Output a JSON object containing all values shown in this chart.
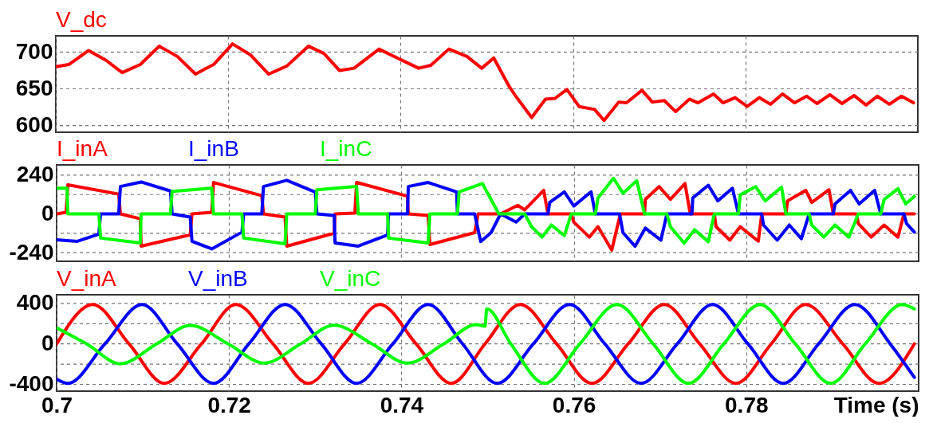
{
  "chart_data": [
    {
      "type": "line",
      "xlim": [
        0.7,
        0.8
      ],
      "xticks": [
        0.7,
        0.72,
        0.74,
        0.76,
        0.78
      ],
      "ylim": [
        591,
        722
      ],
      "yticks": [
        600,
        650,
        700
      ],
      "grid": true,
      "tick_labels": "y",
      "x": [
        0.7,
        0.7015,
        0.7038,
        0.7058,
        0.7077,
        0.7098,
        0.712,
        0.7141,
        0.7162,
        0.7183,
        0.7205,
        0.7226,
        0.7247,
        0.7268,
        0.7293,
        0.7311,
        0.7329,
        0.7346,
        0.7375,
        0.7396,
        0.7421,
        0.7435,
        0.7456,
        0.7477,
        0.7494,
        0.7508,
        0.7526,
        0.7533,
        0.7552,
        0.7568,
        0.7579,
        0.7593,
        0.7607,
        0.7625,
        0.7636,
        0.7653,
        0.7662,
        0.768,
        0.7692,
        0.7706,
        0.7719,
        0.7735,
        0.7745,
        0.7763,
        0.7774,
        0.7788,
        0.7802,
        0.7816,
        0.7829,
        0.7843,
        0.7857,
        0.7871,
        0.7883,
        0.7898,
        0.7912,
        0.7926,
        0.794,
        0.7953,
        0.7967,
        0.7981,
        0.7995
      ],
      "series": [
        {
          "name": "V_dc",
          "color": "#ff0000",
          "values": [
            680,
            683,
            702,
            689,
            672,
            683,
            708,
            694,
            670,
            683,
            711,
            696,
            670,
            681,
            708,
            698,
            675,
            678,
            704,
            692,
            678,
            682,
            704,
            694,
            678,
            692,
            653,
            641,
            611,
            636,
            637,
            649,
            626,
            622,
            607,
            632,
            631,
            648,
            632,
            634,
            619,
            636,
            631,
            643,
            631,
            638,
            626,
            638,
            629,
            643,
            631,
            640,
            630,
            642,
            630,
            641,
            628,
            640,
            629,
            640,
            631
          ]
        }
      ]
    },
    {
      "type": "line",
      "xlim": [
        0.7,
        0.8
      ],
      "xticks": [
        0.7,
        0.72,
        0.74,
        0.76,
        0.78
      ],
      "ylim": [
        -294,
        304
      ],
      "yticks": [
        -240,
        {
          "value": -120,
          "label": null
        },
        0,
        {
          "value": 120,
          "label": null
        },
        240
      ],
      "grid": true,
      "tick_labels": "y",
      "series": [
        {
          "name": "I_inA",
          "color": "#ff0000",
          "x": [
            0.7,
            0.7011,
            0.7013,
            0.7072,
            0.7074,
            0.7097,
            0.7098,
            0.7155,
            0.7157,
            0.718,
            0.7182,
            0.7238,
            0.724,
            0.7265,
            0.7267,
            0.7322,
            0.7323,
            0.7346,
            0.7348,
            0.7407,
            0.7408,
            0.7431,
            0.7433,
            0.7485,
            0.7489,
            0.7515,
            0.7535,
            0.7543,
            0.7565,
            0.757,
            0.7597,
            0.76,
            0.7618,
            0.7628,
            0.7644,
            0.7654,
            0.7682,
            0.7683,
            0.7699,
            0.7712,
            0.7729,
            0.7735,
            0.7763,
            0.7765,
            0.7781,
            0.7793,
            0.7814,
            0.7818,
            0.7846,
            0.7848,
            0.7869,
            0.7876,
            0.7896,
            0.7901,
            0.7928,
            0.793,
            0.7945,
            0.796,
            0.7976,
            0.7983,
            0.7995
          ],
          "values": [
            0,
            10,
            180,
            123,
            0,
            -30,
            -200,
            -130,
            0,
            10,
            195,
            113,
            0,
            -20,
            -200,
            -120,
            0,
            5,
            195,
            110,
            0,
            -10,
            -190,
            -116,
            0,
            0,
            53,
            25,
            146,
            0,
            0,
            -51,
            -144,
            -79,
            -225,
            0,
            0,
            90,
            169,
            90,
            188,
            0,
            0,
            -79,
            -163,
            -79,
            -169,
            0,
            0,
            81,
            146,
            71,
            150,
            0,
            0,
            -60,
            -144,
            -69,
            -144,
            0,
            0
          ]
        },
        {
          "name": "I_inB",
          "color": "#0000ff",
          "x": [
            0.7,
            0.7024,
            0.7049,
            0.7051,
            0.7072,
            0.7074,
            0.7098,
            0.7132,
            0.7134,
            0.7155,
            0.7157,
            0.718,
            0.7215,
            0.7217,
            0.7238,
            0.724,
            0.7267,
            0.73,
            0.7302,
            0.7322,
            0.7323,
            0.735,
            0.7384,
            0.7385,
            0.7407,
            0.7408,
            0.7431,
            0.7464,
            0.7465,
            0.7485,
            0.7492,
            0.7504,
            0.7515,
            0.7533,
            0.7543,
            0.757,
            0.7572,
            0.7589,
            0.76,
            0.762,
            0.7625,
            0.7653,
            0.7657,
            0.7671,
            0.7683,
            0.7701,
            0.7708,
            0.7737,
            0.7738,
            0.7756,
            0.7767,
            0.7784,
            0.7791,
            0.7818,
            0.782,
            0.7836,
            0.785,
            0.7864,
            0.7873,
            0.7901,
            0.7903,
            0.7921,
            0.7931,
            0.7949,
            0.7956,
            0.7983,
            0.7986,
            0.7995
          ],
          "values": [
            -161,
            -170,
            -125,
            0,
            0,
            170,
            198,
            142,
            0,
            -20,
            -170,
            -217,
            -113,
            0,
            0,
            170,
            208,
            135,
            0,
            -10,
            -180,
            -200,
            -130,
            0,
            0,
            170,
            195,
            137,
            0,
            0,
            -172,
            -116,
            0,
            -51,
            0,
            0,
            71,
            137,
            49,
            137,
            0,
            0,
            -116,
            -201,
            -88,
            -163,
            0,
            0,
            99,
            178,
            81,
            159,
            0,
            0,
            -69,
            -163,
            -69,
            -154,
            0,
            0,
            62,
            146,
            62,
            146,
            0,
            0,
            -60,
            -113
          ]
        },
        {
          "name": "I_inC",
          "color": "#00ff00",
          "x": [
            0.7,
            0.7012,
            0.7013,
            0.7049,
            0.7051,
            0.7097,
            0.7098,
            0.7132,
            0.7134,
            0.718,
            0.7182,
            0.7215,
            0.7217,
            0.7265,
            0.7267,
            0.73,
            0.7302,
            0.7348,
            0.735,
            0.7384,
            0.7385,
            0.7431,
            0.7433,
            0.7465,
            0.7467,
            0.7494,
            0.7513,
            0.7543,
            0.7551,
            0.7563,
            0.7574,
            0.7589,
            0.7597,
            0.7625,
            0.7628,
            0.7646,
            0.7657,
            0.7673,
            0.7682,
            0.7708,
            0.7712,
            0.7728,
            0.774,
            0.7756,
            0.7763,
            0.7791,
            0.7793,
            0.7811,
            0.7822,
            0.7841,
            0.7846,
            0.7873,
            0.7876,
            0.789,
            0.7903,
            0.7919,
            0.793,
            0.7956,
            0.796,
            0.7976,
            0.7985,
            0.7995
          ],
          "values": [
            160,
            160,
            0,
            0,
            -150,
            -180,
            0,
            0,
            140,
            160,
            0,
            0,
            -150,
            -185,
            0,
            0,
            150,
            170,
            0,
            0,
            -150,
            -180,
            0,
            0,
            137,
            188,
            0,
            0,
            -79,
            -144,
            -69,
            -135,
            0,
            0,
            99,
            221,
            128,
            206,
            0,
            0,
            -79,
            -182,
            -98,
            -173,
            0,
            0,
            118,
            169,
            81,
            165,
            0,
            0,
            -69,
            -144,
            -69,
            -144,
            0,
            0,
            90,
            156,
            62,
            109
          ]
        }
      ]
    },
    {
      "type": "line",
      "xlim": [
        0.7,
        0.8
      ],
      "xticks": [
        0.7,
        0.72,
        0.74,
        0.76,
        0.78
      ],
      "ylim": [
        -467,
        486
      ],
      "yticks": [
        -400,
        {
          "value": -200,
          "label": null
        },
        0,
        {
          "value": 200,
          "label": null
        },
        400
      ],
      "grid": true,
      "xlabel": "Time (s)",
      "series": [
        {
          "name": "V_inA",
          "color": "#ff0000",
          "x": [
            0.7,
            0.7042,
            0.7084,
            0.7125,
            0.7168,
            0.7208,
            0.7251,
            0.7292,
            0.7334,
            0.7375,
            0.7417,
            0.7458,
            0.7497,
            0.7538,
            0.758,
            0.7621,
            0.7663,
            0.7705,
            0.7746,
            0.7788,
            0.7829,
            0.7869,
            0.7912,
            0.7954,
            0.7995
          ],
          "values": [
            0,
            390,
            0,
            -390,
            0,
            390,
            0,
            -390,
            0,
            390,
            0,
            -390,
            0,
            390,
            0,
            -390,
            0,
            390,
            0,
            -390,
            0,
            390,
            0,
            -390,
            0
          ]
        },
        {
          "name": "V_inB",
          "color": "#0000ff",
          "x": [
            0.7,
            0.7013,
            0.7056,
            0.7099,
            0.714,
            0.7182,
            0.7223,
            0.7265,
            0.7307,
            0.7348,
            0.739,
            0.7431,
            0.7471,
            0.7511,
            0.7553,
            0.7595,
            0.7636,
            0.7678,
            0.772,
            0.7761,
            0.7802,
            0.7843,
            0.7884,
            0.7926,
            0.7967,
            0.7995
          ],
          "values": [
            -348,
            -390,
            0,
            390,
            0,
            -390,
            0,
            390,
            0,
            -390,
            0,
            390,
            0,
            -390,
            0,
            390,
            0,
            -390,
            0,
            390,
            0,
            -390,
            0,
            390,
            0,
            -331
          ]
        },
        {
          "name": "V_inC",
          "color": "#00ff00",
          "x": [
            0.7,
            0.7035,
            0.7074,
            0.7116,
            0.7155,
            0.7199,
            0.7241,
            0.7283,
            0.7322,
            0.7366,
            0.7407,
            0.7449,
            0.7487,
            0.7497,
            0.7499,
            0.7527,
            0.7566,
            0.7607,
            0.765,
            0.7692,
            0.7733,
            0.7774,
            0.7816,
            0.7857,
            0.7898,
            0.7938,
            0.7981,
            0.7995
          ],
          "values": [
            160,
            0,
            -197,
            0,
            182,
            0,
            -190,
            0,
            185,
            0,
            -190,
            0,
            190,
            175,
            346,
            0,
            -390,
            0,
            390,
            0,
            -390,
            0,
            390,
            0,
            -390,
            0,
            390,
            346
          ]
        }
      ]
    }
  ]
}
